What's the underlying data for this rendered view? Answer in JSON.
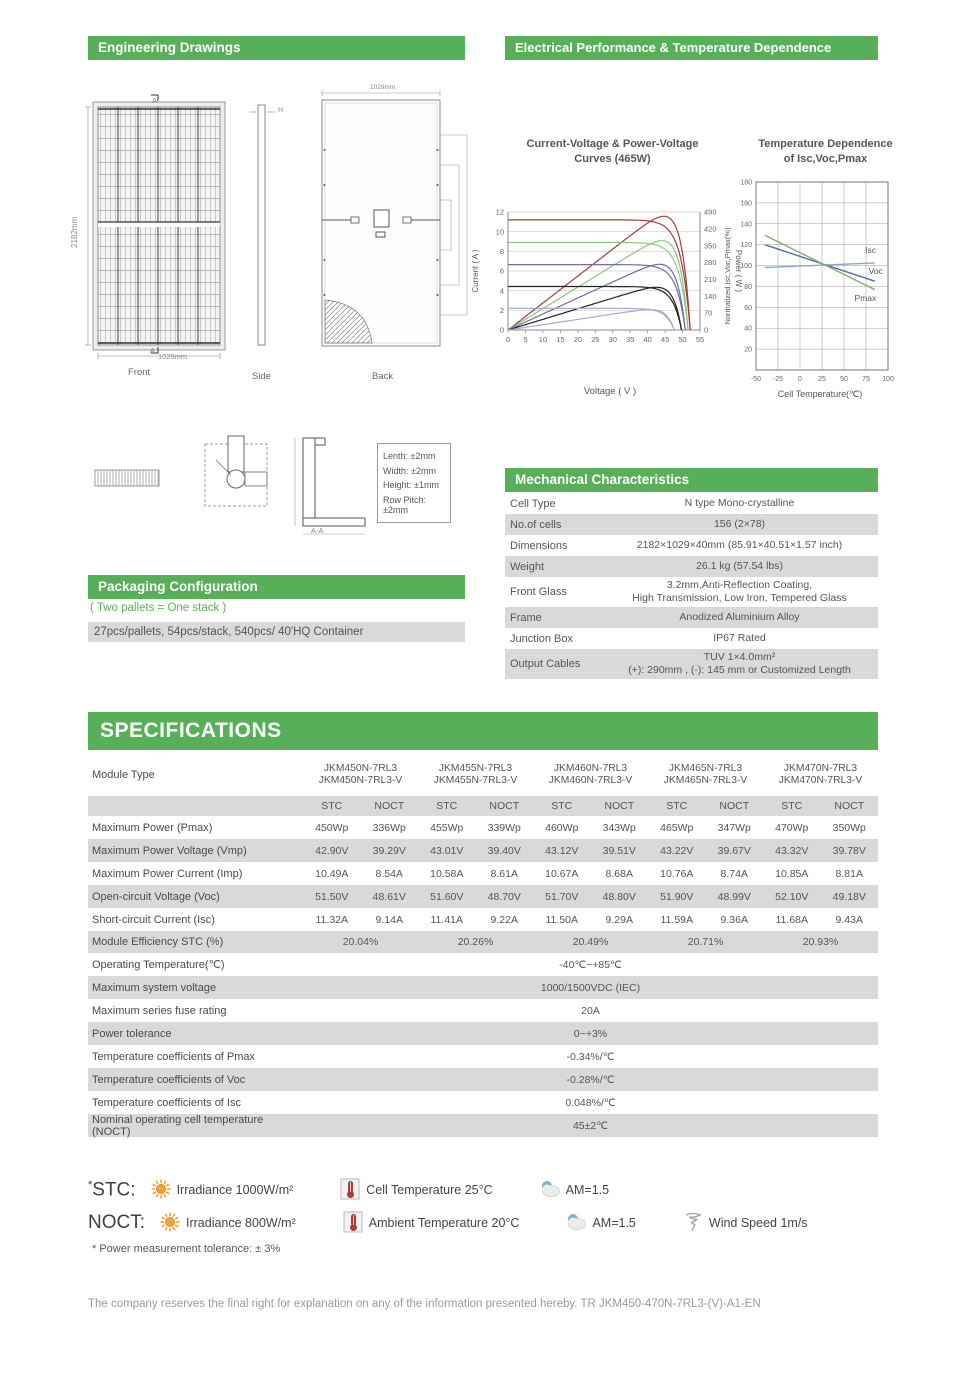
{
  "engineering": {
    "title": "Engineering Drawings",
    "front_label": "Front",
    "side_label": "Side",
    "back_label": "Back",
    "dim_height": "2182mm",
    "dim_width": "1029mm",
    "back_dim": "1029mm",
    "mark_a_top": "A",
    "mark_a_bottom": "A",
    "side_dim": "H",
    "section_label": "A-A",
    "tolerances": [
      "Lenth: ±2mm",
      "Width: ±2mm",
      "Height: ±1mm",
      "Row Pitch: ±2mm"
    ]
  },
  "electrical": {
    "title": "Electrical Performance & Temperature Dependence"
  },
  "mechanical": {
    "title": "Mechanical Characteristics",
    "rows": [
      {
        "label": "Cell Type",
        "lines": [
          "N type Mono-crystalline"
        ],
        "shade": false
      },
      {
        "label": "No.of cells",
        "lines": [
          "156 (2×78)"
        ],
        "shade": true
      },
      {
        "label": "Dimensions",
        "lines": [
          "2182×1029×40mm (85.91×40.51×1.57 inch)"
        ],
        "shade": false
      },
      {
        "label": "Weight",
        "lines": [
          "26.1 kg (57.54 lbs)"
        ],
        "shade": true
      },
      {
        "label": "Front Glass",
        "lines": [
          "3.2mm,Anti-Reflection Coating,",
          "High Transmission, Low Iron, Tempered Glass"
        ],
        "shade": false
      },
      {
        "label": "Frame",
        "lines": [
          "Anodized Aluminium Alloy"
        ],
        "shade": true
      },
      {
        "label": "Junction Box",
        "lines": [
          "IP67 Rated"
        ],
        "shade": false
      },
      {
        "label": "Output Cables",
        "lines": [
          "TUV  1×4.0mm²",
          "(+): 290mm , (-): 145 mm or Customized Length"
        ],
        "shade": true
      }
    ]
  },
  "packaging": {
    "title": "Packaging Configuration",
    "note": "( Two pallets = One stack )",
    "row": "27pcs/pallets, 54pcs/stack, 540pcs/ 40'HQ Container"
  },
  "specifications": {
    "title": "SPECIFICATIONS",
    "module_type_label": "Module Type",
    "models": [
      [
        "JKM450N-7RL3",
        "JKM450N-7RL3-V"
      ],
      [
        "JKM455N-7RL3",
        "JKM455N-7RL3-V"
      ],
      [
        "JKM460N-7RL3",
        "JKM460N-7RL3-V"
      ],
      [
        "JKM465N-7RL3",
        "JKM465N-7RL3-V"
      ],
      [
        "JKM470N-7RL3",
        "JKM470N-7RL3-V"
      ]
    ],
    "condition_headers": [
      "STC",
      "NOCT"
    ],
    "rows_paired": [
      {
        "label": "Maximum Power (Pmax)",
        "values": [
          "450Wp",
          "336Wp",
          "455Wp",
          "339Wp",
          "460Wp",
          "343Wp",
          "465Wp",
          "347Wp",
          "470Wp",
          "350Wp"
        ]
      },
      {
        "label": "Maximum Power Voltage (Vmp)",
        "values": [
          "42.90V",
          "39.29V",
          "43.01V",
          "39.40V",
          "43.12V",
          "39.51V",
          "43.22V",
          "39.67V",
          "43.32V",
          "39.78V"
        ]
      },
      {
        "label": "Maximum Power Current (Imp)",
        "values": [
          "10.49A",
          "8.54A",
          "10.58A",
          "8.61A",
          "10.67A",
          "8.68A",
          "10.76A",
          "8.74A",
          "10.85A",
          "8.81A"
        ]
      },
      {
        "label": "Open-circuit Voltage (Voc)",
        "values": [
          "51.50V",
          "48.61V",
          "51.60V",
          "48.70V",
          "51.70V",
          "48.80V",
          "51.90V",
          "48.99V",
          "52.10V",
          "49.18V"
        ]
      },
      {
        "label": "Short-circuit Current (Isc)",
        "values": [
          "11.32A",
          "9.14A",
          "11.41A",
          "9.22A",
          "11.50A",
          "9.29A",
          "11.59A",
          "9.36A",
          "11.68A",
          "9.43A"
        ]
      }
    ],
    "row_efficiency": {
      "label": "Module Efficiency STC (%)",
      "values": [
        "20.04%",
        "20.26%",
        "20.49%",
        "20.71%",
        "20.93%"
      ]
    },
    "rows_span": [
      {
        "label": "Operating Temperature(℃)",
        "value": "-40℃~+85℃"
      },
      {
        "label": "Maximum system voltage",
        "value": "1000/1500VDC (IEC)"
      },
      {
        "label": "Maximum series fuse rating",
        "value": "20A"
      },
      {
        "label": "Power tolerance",
        "value": "0~+3%"
      },
      {
        "label": "Temperature coefficients of Pmax",
        "value": "-0.34%/℃"
      },
      {
        "label": "Temperature coefficients of Voc",
        "value": "-0.28%/℃"
      },
      {
        "label": "Temperature coefficients of Isc",
        "value": "0.048%/℃"
      },
      {
        "label": "Nominal operating cell temperature  (NOCT)",
        "value": "45±2℃"
      }
    ]
  },
  "legend": {
    "stc_star": "*",
    "stc_label": "STC:",
    "noct_label": "NOCT:",
    "stc_items": [
      {
        "icon": "sun",
        "text": "Irradiance 1000W/m²"
      },
      {
        "icon": "thermometer",
        "text": "Cell Temperature 25°C"
      },
      {
        "icon": "cloud",
        "text": "AM=1.5"
      }
    ],
    "noct_items": [
      {
        "icon": "sun",
        "text": "Irradiance 800W/m²"
      },
      {
        "icon": "thermometer",
        "text": "Ambient Temperature 20°C"
      },
      {
        "icon": "cloud",
        "text": "AM=1.5"
      },
      {
        "icon": "wind",
        "text": "Wind Speed 1m/s"
      }
    ],
    "footnote": "* Power measurement tolerance: ± 3%"
  },
  "footer": "The company reserves the final right for explanation on any of the information presented hereby. TR JKM450-470N-7RL3-(V)-A1-EN",
  "chart_data": [
    {
      "type": "line",
      "title": "Current-Voltage & Power-Voltage Curves (465W)",
      "title_lines": [
        "Current-Voltage & Power-Voltage",
        "Curves (465W)"
      ],
      "xlabel": "Voltage ( V )",
      "ylabel_left": "Current ( A )",
      "ylabel_right": "Power ( W )",
      "xlim": [
        0,
        55
      ],
      "x_tick_step": 5,
      "ylim_left": [
        0,
        12
      ],
      "y_left_tick_step": 2,
      "ylim_right": [
        0,
        490
      ],
      "y_right_tick_step": 70,
      "grid": "horizontal",
      "series": [
        {
          "name": "series-1",
          "color": "#a63a3e",
          "isc_A": 11.2,
          "voc_V": 52.2,
          "pmax_W": 465
        },
        {
          "name": "series-2",
          "color": "#8cc87d",
          "isc_A": 8.9,
          "voc_V": 51.6,
          "pmax_W": 368
        },
        {
          "name": "series-3",
          "color": "#6d6da8",
          "isc_A": 6.65,
          "voc_V": 50.8,
          "pmax_W": 272
        },
        {
          "name": "series-4",
          "color": "#222222",
          "isc_A": 4.42,
          "voc_V": 49.7,
          "pmax_W": 178
        },
        {
          "name": "series-5",
          "color": "#a9a9ca",
          "isc_A": 2.2,
          "voc_V": 47.6,
          "pmax_W": 86
        }
      ]
    },
    {
      "type": "line",
      "title": "Temperature Dependence of Isc,Voc,Pmax",
      "title_lines": [
        "Temperature Dependence",
        "of Isc,Voc,Pmax"
      ],
      "xlabel": "Cell Temperature(℃)",
      "ylabel": "Normalized Isc,Voc,Pmax(%)",
      "xlim": [
        -50,
        100
      ],
      "x_tick_step": 25,
      "ylim": [
        0,
        180
      ],
      "y_tick_step": 20,
      "grid": "both",
      "series": [
        {
          "name": "Isc",
          "color": "#8aa9c9",
          "points": [
            [
              -40,
              98
            ],
            [
              85,
              102.5
            ]
          ],
          "label_xy": [
            74,
            112
          ]
        },
        {
          "name": "Voc",
          "color": "#5a6b9e",
          "points": [
            [
              -40,
              120
            ],
            [
              85,
              85
            ]
          ],
          "label_xy": [
            78,
            92
          ]
        },
        {
          "name": "Pmax",
          "color": "#7fb069",
          "points": [
            [
              -40,
              129
            ],
            [
              85,
              77
            ]
          ],
          "label_xy": [
            62,
            66
          ]
        }
      ]
    }
  ]
}
